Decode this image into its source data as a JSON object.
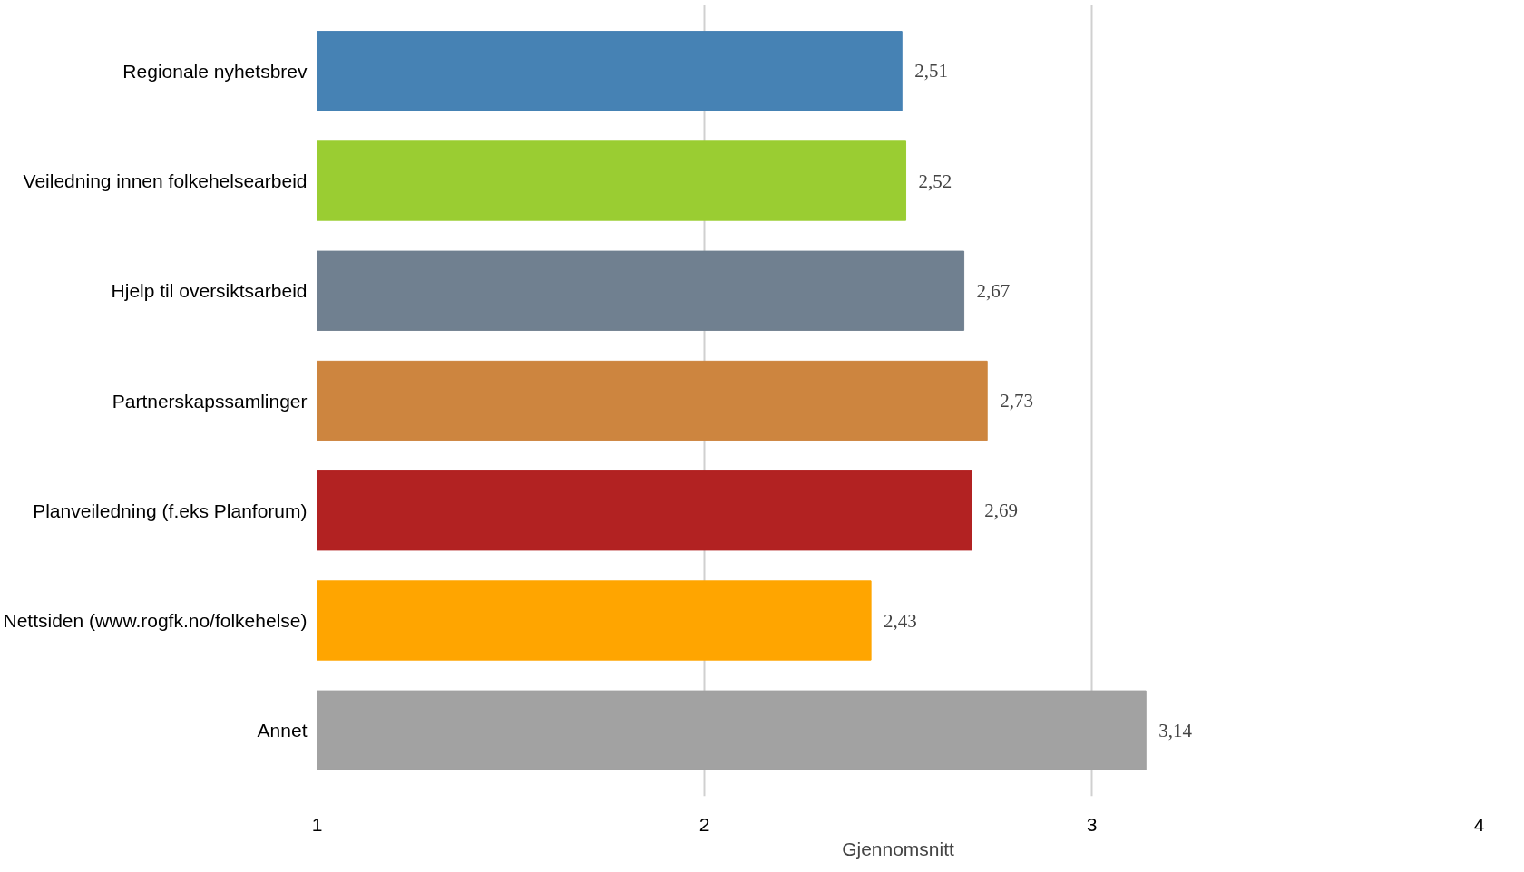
{
  "chart_data": {
    "type": "bar",
    "orientation": "horizontal",
    "xlabel": "Gjennomsnitt",
    "categories": [
      "Regionale nyhetsbrev",
      "Veiledning innen folkehelsearbeid",
      "Hjelp til oversiktsarbeid",
      "Partnerskapssamlinger",
      "Planveiledning (f.eks Planforum)",
      "Nettsiden (www.rogfk.no/folkehelse)",
      "Annet"
    ],
    "values": [
      2.51,
      2.52,
      2.67,
      2.73,
      2.69,
      2.43,
      3.14
    ],
    "value_labels": [
      "2,51",
      "2,52",
      "2,67",
      "2,73",
      "2,69",
      "2,43",
      "3,14"
    ],
    "colors": [
      "#4682b4",
      "#9acd32",
      "#708090",
      "#cd853f",
      "#b22222",
      "#ffa500",
      "#a2a2a2"
    ],
    "xlim": [
      1,
      4
    ],
    "xticks": [
      1,
      2,
      3,
      4
    ],
    "grid": "x"
  }
}
